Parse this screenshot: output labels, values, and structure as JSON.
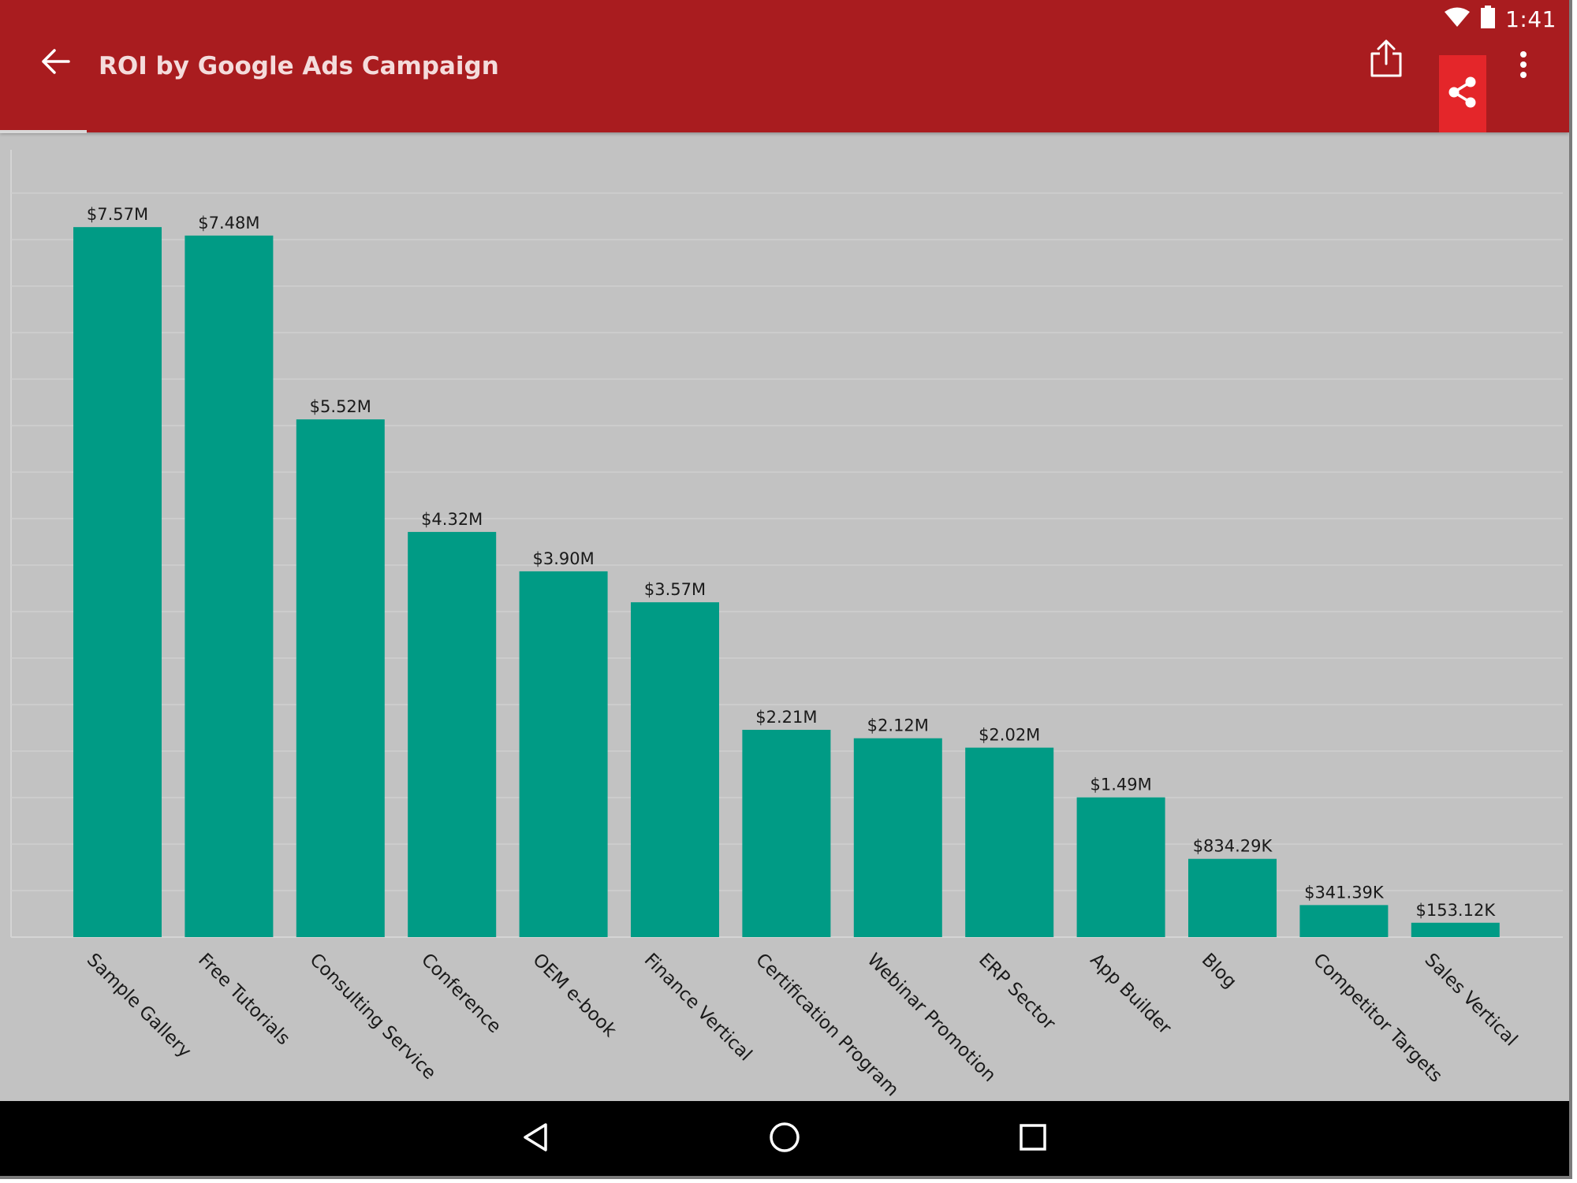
{
  "status_bar": {
    "time": "1:41",
    "icons": [
      "wifi-icon",
      "battery-icon"
    ]
  },
  "toolbar": {
    "title": "ROI by Google Ads Campaign",
    "icons": [
      "back-arrow-icon",
      "upload-share-icon",
      "share-icon",
      "more-vertical-icon"
    ]
  },
  "colors": {
    "appbar": "#a91c1f",
    "appbar_active_button": "#e4262a",
    "bar": "#009b85",
    "chart_background": "#c2c2c2",
    "gridline": "#cfcfcf",
    "navbar": "#000000"
  },
  "chart_data": {
    "type": "bar",
    "title": "",
    "xlabel": "",
    "ylabel": "",
    "categories": [
      "Sample Gallery",
      "Free Tutorials",
      "Consulting Service",
      "Conference",
      "OEM e-book",
      "Finance Vertical",
      "Certification Program",
      "Webinar Promotion",
      "ERP Sector",
      "App Builder",
      "Blog",
      "Competitor Targets",
      "Sales Vertical"
    ],
    "values": [
      7570000,
      7480000,
      5520000,
      4320000,
      3900000,
      3570000,
      2210000,
      2120000,
      2020000,
      1490000,
      834290,
      341390,
      153120
    ],
    "data_labels": [
      "$7.57M",
      "$7.48M",
      "$5.52M",
      "$4.32M",
      "$3.90M",
      "$3.57M",
      "$2.21M",
      "$2.12M",
      "$2.02M",
      "$1.49M",
      "$834.29K",
      "$341.39K",
      "$153.12K"
    ],
    "ylim": [
      0,
      8000000
    ],
    "grid": true,
    "legend": "none"
  },
  "navigation_bar": {
    "icons": [
      "back-triangle-icon",
      "home-circle-icon",
      "recents-square-icon"
    ]
  }
}
